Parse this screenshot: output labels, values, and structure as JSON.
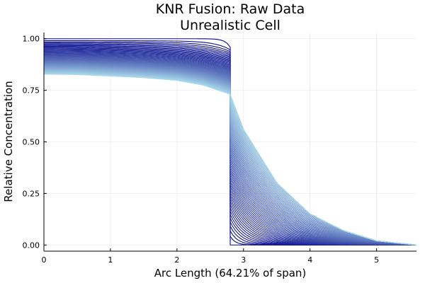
{
  "chart_data": {
    "type": "line",
    "title": "KNR Fusion: Raw Data",
    "subtitle": "Unrealistic Cell",
    "xlabel": "Arc Length (64.21% of span)",
    "ylabel": "Relative Concentration",
    "xlim": [
      0,
      5.6
    ],
    "ylim": [
      -0.03,
      1.03
    ],
    "xticks": [
      0,
      1,
      2,
      3,
      4,
      5
    ],
    "xtick_labels": [
      "0",
      "1",
      "2",
      "3",
      "4",
      "5"
    ],
    "yticks": [
      0,
      0.25,
      0.5,
      0.75,
      1
    ],
    "ytick_labels": [
      "0.00",
      "0.25",
      "0.50",
      "0.75",
      "1.00"
    ],
    "grid": true,
    "legend": false,
    "interface_x": 2.8,
    "series_count": 60,
    "series_style": "family of curves, dark blue (early) to light blue (late)",
    "color_start": "#0a0a8c",
    "color_end": "#a8d8ea",
    "early_curve": {
      "x": [
        0,
        2.8,
        2.8,
        5.6
      ],
      "y": [
        1.0,
        1.0,
        0.0,
        0.0
      ]
    },
    "late_curve": {
      "x": [
        0,
        0.5,
        1.0,
        1.5,
        2.0,
        2.4,
        2.8,
        3.0,
        3.5,
        4.0,
        4.5,
        5.0,
        5.6
      ],
      "y": [
        0.81,
        0.81,
        0.805,
        0.8,
        0.79,
        0.77,
        0.73,
        0.56,
        0.3,
        0.15,
        0.07,
        0.02,
        0.0
      ]
    }
  }
}
